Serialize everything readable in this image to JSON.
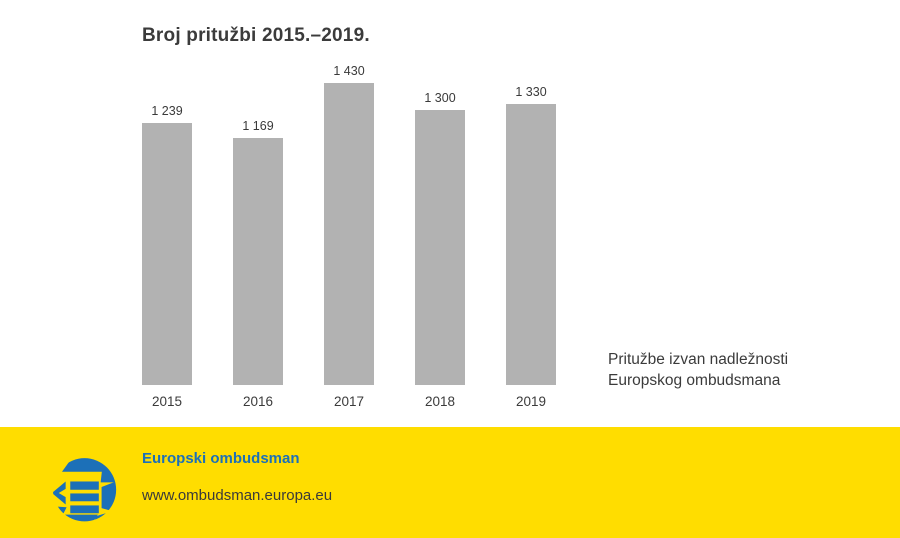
{
  "chart": {
    "title": "Broj pritužbi 2015.–2019.",
    "annotation": {
      "line1": "Pritužbe izvan nadležnosti",
      "line2": "Europskog ombudsmana"
    }
  },
  "chart_data": {
    "type": "bar",
    "title": "Broj pritužbi 2015.–2019.",
    "categories": [
      "2015",
      "2016",
      "2017",
      "2018",
      "2019"
    ],
    "values": [
      1239,
      1169,
      1430,
      1300,
      1330
    ],
    "value_labels": [
      "1 239",
      "1 169",
      "1 430",
      "1 300",
      "1 330"
    ],
    "xlabel": "",
    "ylabel": "",
    "ylim": [
      0,
      1430
    ],
    "grid": false,
    "legend": false,
    "bar_color": "#b2b2b2",
    "annotation": "Pritužbe izvan nadležnosti Europskog ombudsmana"
  },
  "footer": {
    "org_name": "Europski ombudsman",
    "url": "www.ombudsman.europa.eu",
    "background_color": "#ffdd00",
    "brand_blue": "#1c70b8",
    "logo": "european-ombudsman-logo"
  }
}
